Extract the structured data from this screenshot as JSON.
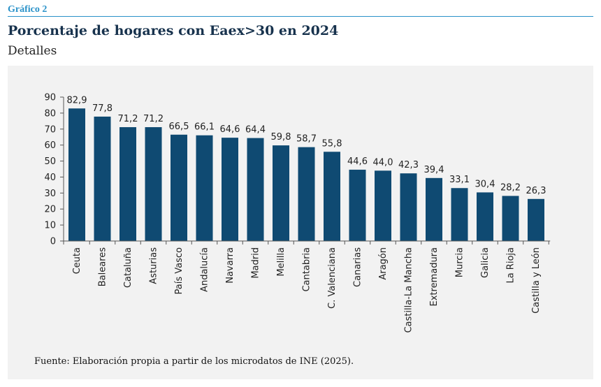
{
  "header": {
    "label": "Gráfico 2",
    "title": "Porcentaje de hogares con Eaex>30 en 2024",
    "subtitle": "Detalles"
  },
  "source": "Fuente: Elaboración propia a partir de los microdatos de INE (2025).",
  "colors": {
    "bar": "#0f4a72",
    "accent": "#2a92c9",
    "panel": "#f2f2f2"
  },
  "chart_data": {
    "type": "bar",
    "title": "Porcentaje de hogares con Eaex>30 en 2024",
    "subtitle": "Detalles",
    "xlabel": "",
    "ylabel": "",
    "ylim": [
      0,
      90
    ],
    "yticks": [
      0,
      10,
      20,
      30,
      40,
      50,
      60,
      70,
      80,
      90
    ],
    "grid": false,
    "legend": "none",
    "categories": [
      "Ceuta",
      "Baleares",
      "Cataluña",
      "Asturias",
      "País Vasco",
      "Andalucía",
      "Navarra",
      "Madrid",
      "Melilla",
      "Cantabria",
      "C. Valenciana",
      "Canarias",
      "Aragón",
      "Castilla-La Mancha",
      "Extremadura",
      "Murcia",
      "Galicia",
      "La Rioja",
      "Castilla y León"
    ],
    "values": [
      82.9,
      77.8,
      71.2,
      71.2,
      66.5,
      66.1,
      64.6,
      64.4,
      59.8,
      58.7,
      55.8,
      44.6,
      44.0,
      42.3,
      39.4,
      33.1,
      30.4,
      28.2,
      26.3
    ],
    "value_labels": [
      "82,9",
      "77,8",
      "71,2",
      "71,2",
      "66,5",
      "66,1",
      "64,6",
      "64,4",
      "59,8",
      "58,7",
      "55,8",
      "44,6",
      "44,0",
      "42,3",
      "39,4",
      "33,1",
      "30,4",
      "28,2",
      "26,3"
    ]
  }
}
